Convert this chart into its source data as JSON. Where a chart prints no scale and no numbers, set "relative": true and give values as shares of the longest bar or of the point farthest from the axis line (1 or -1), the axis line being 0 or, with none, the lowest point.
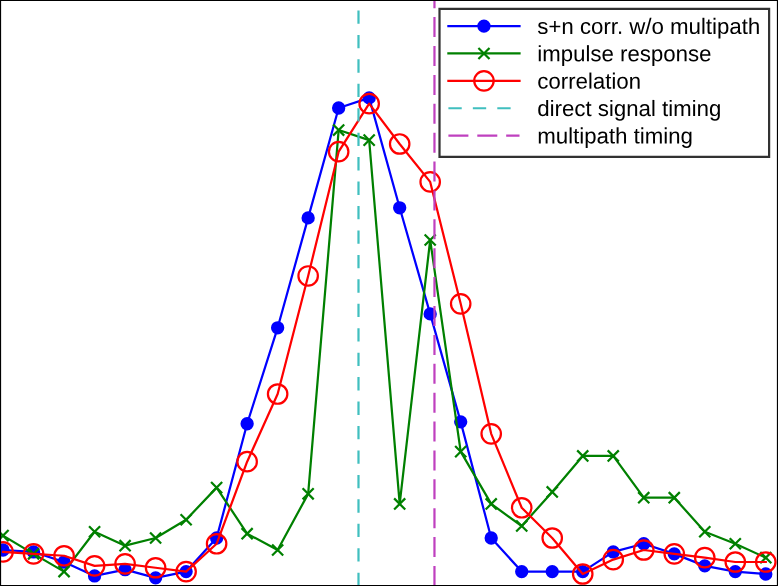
{
  "chart_data": {
    "type": "line",
    "relative": true,
    "categories": [
      null,
      null,
      null,
      null,
      null,
      null,
      null,
      null,
      null,
      null,
      null,
      null,
      null,
      null,
      null,
      null,
      null,
      null,
      null,
      null,
      null,
      null,
      null,
      null,
      null,
      null
    ],
    "series": [
      {
        "name": "s+n corr. w/o multipath",
        "color": "#0000ff",
        "marker": "circle",
        "values": [
          0.058,
          0.054,
          0.033,
          0.004,
          0.017,
          0,
          0.013,
          0.083,
          0.321,
          0.521,
          0.75,
          0.979,
          1,
          0.771,
          0.55,
          0.325,
          0.083,
          0.013,
          0.013,
          0.013,
          0.054,
          0.071,
          0.05,
          0.025,
          0.013,
          0.008
        ]
      },
      {
        "name": "impulse response",
        "color": "#008000",
        "marker": "cross",
        "values": [
          0.088,
          0.05,
          0.013,
          0.096,
          0.067,
          0.083,
          0.121,
          0.188,
          0.092,
          0.058,
          0.175,
          0.933,
          0.912,
          0.154,
          0.704,
          0.263,
          0.154,
          0.108,
          0.179,
          0.254,
          0.254,
          0.167,
          0.167,
          0.096,
          0.071,
          0.042
        ]
      },
      {
        "name": "correlation",
        "color": "#ff0000",
        "marker": "circle",
        "values": [
          0.054,
          0.05,
          0.046,
          0.025,
          0.029,
          0.021,
          0.013,
          0.071,
          0.242,
          0.383,
          0.629,
          0.888,
          0.988,
          0.904,
          0.825,
          0.571,
          0.3,
          0.146,
          0.083,
          0.008,
          0.038,
          0.058,
          0.05,
          0.042,
          0.033,
          0.033
        ]
      }
    ],
    "ref_lines": [
      {
        "axis": "x",
        "label": "direct signal timing",
        "color": "#40bfbf",
        "line_style": "dashed"
      },
      {
        "axis": "x",
        "label": "multipath timing",
        "color": "#bf40bf",
        "line_style": "dashdot"
      }
    ],
    "grid": false,
    "legend": "top right"
  }
}
